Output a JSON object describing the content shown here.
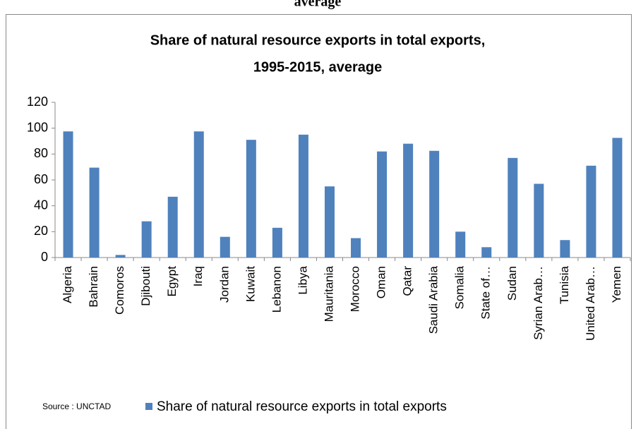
{
  "page_heading": "average",
  "chart_data": {
    "type": "bar",
    "title": "Share of natural resource exports in total exports,",
    "subtitle": "1995-2015, average",
    "source": "Source : UNCTAD",
    "categories": [
      "Algeria",
      "Bahrain",
      "Comoros",
      "Djibouti",
      "Egypt",
      "Iraq",
      "Jordan",
      "Kuwait",
      "Lebanon",
      "Libya",
      "Mauritania",
      "Morocco",
      "Oman",
      "Qatar",
      "Saudi Arabia",
      "Somalia",
      "State of…",
      "Sudan",
      "Syrian Arab…",
      "Tunisia",
      "United Arab…",
      "Yemen"
    ],
    "series": [
      {
        "name": "Share of natural resource exports in total exports",
        "color": "#4f81bd",
        "values": [
          97.5,
          69.5,
          2,
          28,
          47,
          97.5,
          16,
          91,
          23,
          95,
          55,
          15,
          82,
          88,
          82.5,
          20,
          8,
          77,
          57,
          13.5,
          71,
          92.5
        ]
      }
    ],
    "ylim": [
      0,
      120
    ],
    "yticks": [
      0,
      20,
      40,
      60,
      80,
      100,
      120
    ],
    "grid": false
  }
}
